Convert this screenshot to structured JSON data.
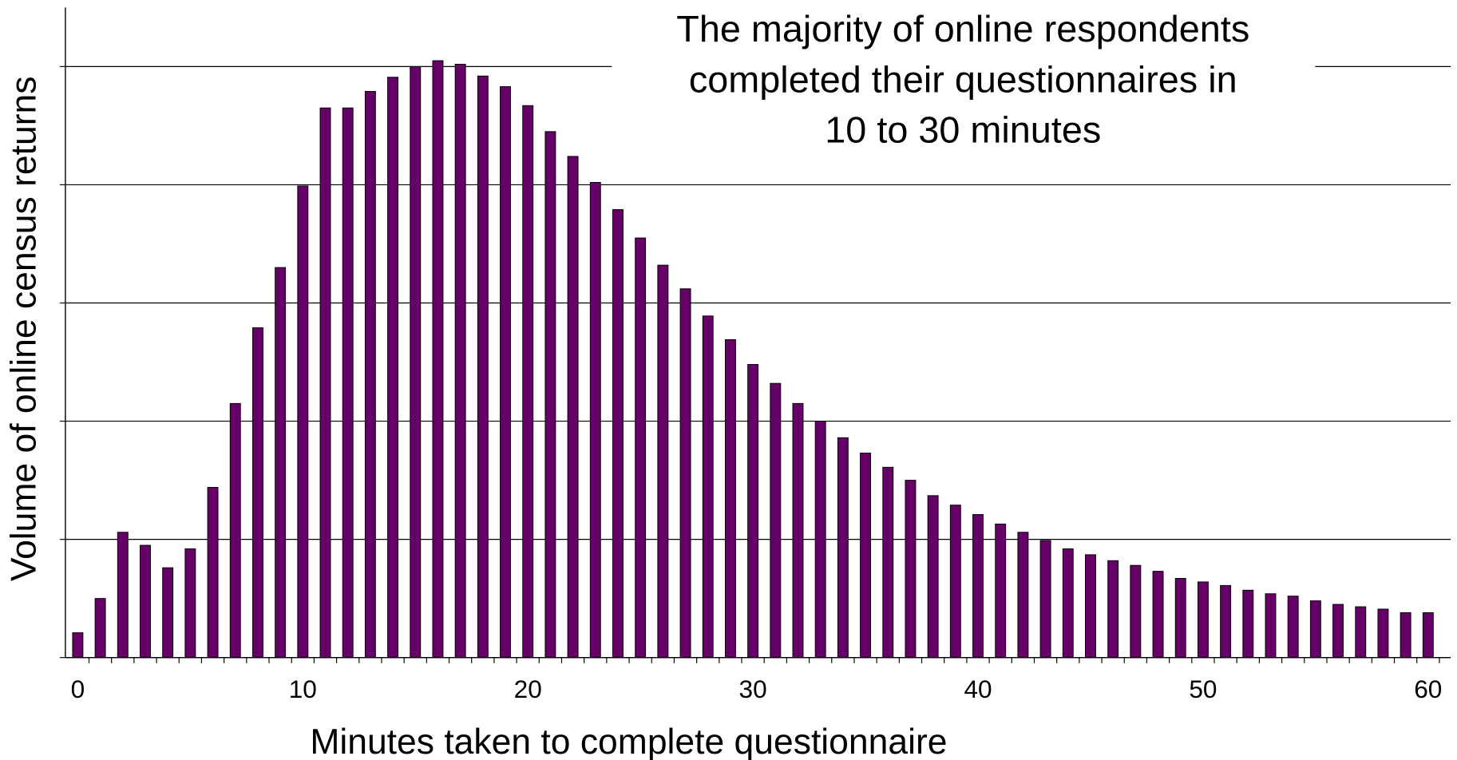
{
  "chart_data": {
    "type": "bar",
    "annotation": [
      "The majority of online respondents",
      "completed their questionnaires in",
      "10 to 30 minutes"
    ],
    "x_label": "Minutes taken to complete questionnaire",
    "y_label": "Volume of online census returns",
    "x": [
      0,
      1,
      2,
      3,
      4,
      5,
      6,
      7,
      8,
      9,
      10,
      11,
      12,
      13,
      14,
      15,
      16,
      17,
      18,
      19,
      20,
      21,
      22,
      23,
      24,
      25,
      26,
      27,
      28,
      29,
      30,
      31,
      32,
      33,
      34,
      35,
      36,
      37,
      38,
      39,
      40,
      41,
      42,
      43,
      44,
      45,
      46,
      47,
      48,
      49,
      50,
      51,
      52,
      53,
      54,
      55,
      56,
      57,
      58,
      59,
      60
    ],
    "values": [
      0.21,
      0.5,
      1.06,
      0.95,
      0.76,
      0.92,
      1.44,
      2.15,
      2.79,
      3.3,
      3.99,
      4.65,
      4.65,
      4.79,
      4.91,
      5.0,
      5.05,
      5.02,
      4.92,
      4.83,
      4.67,
      4.45,
      4.24,
      4.02,
      3.79,
      3.55,
      3.32,
      3.12,
      2.89,
      2.69,
      2.48,
      2.32,
      2.15,
      2.0,
      1.86,
      1.73,
      1.61,
      1.5,
      1.37,
      1.29,
      1.21,
      1.13,
      1.06,
      0.99,
      0.92,
      0.87,
      0.82,
      0.78,
      0.73,
      0.67,
      0.64,
      0.61,
      0.57,
      0.54,
      0.52,
      0.48,
      0.45,
      0.43,
      0.41,
      0.38,
      0.38
    ],
    "color": "#660066",
    "xlim": [
      -0.55,
      61
    ],
    "xticks": [
      0,
      10,
      20,
      30,
      40,
      50,
      60
    ],
    "ylim": [
      0,
      5.5
    ],
    "yticks": [
      0,
      1,
      2,
      3,
      4,
      5
    ],
    "grid": true
  }
}
